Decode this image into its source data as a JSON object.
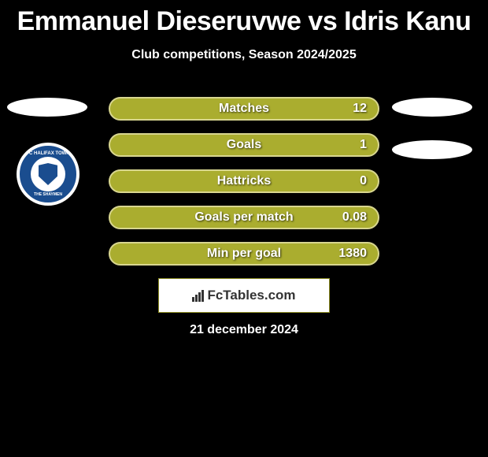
{
  "title": "Emmanuel Dieseruvwe vs Idris Kanu",
  "subtitle": "Club competitions, Season 2024/2025",
  "colors": {
    "background": "#000000",
    "bar_fill": "#aaad2f",
    "bar_border": "#d8d68f",
    "text": "#ffffff",
    "badge_primary": "#1a4d8f",
    "ellipse": "#ffffff"
  },
  "bar_style": {
    "height": 30,
    "border_radius": 15,
    "gap": 16,
    "border_width": 2,
    "font_size": 16,
    "font_weight": 700
  },
  "badge": {
    "text_top": "FC HALIFAX TOWN",
    "text_bottom": "THE SHAYMEN"
  },
  "stats": [
    {
      "label": "Matches",
      "value": "12"
    },
    {
      "label": "Goals",
      "value": "1"
    },
    {
      "label": "Hattricks",
      "value": "0"
    },
    {
      "label": "Goals per match",
      "value": "0.08"
    },
    {
      "label": "Min per goal",
      "value": "1380"
    }
  ],
  "footer_brand": "FcTables.com",
  "date": "21 december 2024"
}
